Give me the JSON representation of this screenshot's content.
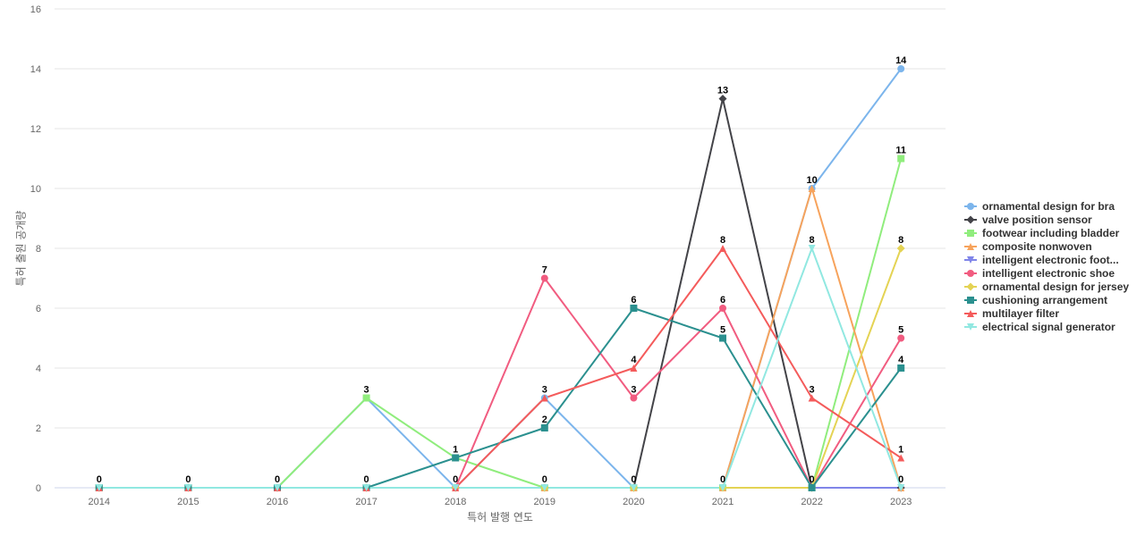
{
  "chart_data": {
    "type": "line",
    "title": "",
    "xlabel": "특허 발행 연도",
    "ylabel": "특허 출원 공개량",
    "x": [
      "2014",
      "2015",
      "2016",
      "2017",
      "2018",
      "2019",
      "2020",
      "2021",
      "2022",
      "2023"
    ],
    "ylim": [
      0,
      16
    ],
    "yticks": [
      0,
      2,
      4,
      6,
      8,
      10,
      12,
      14,
      16
    ],
    "grid": true,
    "legend_position": "right",
    "series": [
      {
        "name": "ornamental design for bra",
        "color": "#7cb5ec",
        "marker": "circle",
        "values": [
          0,
          0,
          0,
          3,
          0,
          3,
          0,
          0,
          10,
          14
        ]
      },
      {
        "name": "valve position sensor",
        "color": "#434348",
        "marker": "diamond",
        "values": [
          0,
          0,
          0,
          0,
          0,
          0,
          0,
          13,
          0,
          0
        ]
      },
      {
        "name": "footwear including bladder",
        "color": "#90ed7d",
        "marker": "square",
        "values": [
          0,
          0,
          0,
          3,
          1,
          0,
          0,
          0,
          0,
          11
        ]
      },
      {
        "name": "composite nonwoven",
        "color": "#f7a35c",
        "marker": "triangle",
        "values": [
          0,
          0,
          0,
          0,
          0,
          0,
          0,
          0,
          10,
          0
        ]
      },
      {
        "name": "intelligent electronic foot...",
        "color": "#8085e9",
        "marker": "triangle-down",
        "values": [
          0,
          0,
          0,
          0,
          0,
          0,
          0,
          0,
          0,
          0
        ]
      },
      {
        "name": "intelligent electronic shoe",
        "color": "#f15c80",
        "marker": "circle",
        "values": [
          0,
          0,
          0,
          0,
          0,
          7,
          3,
          6,
          0,
          5
        ]
      },
      {
        "name": "ornamental design for jersey",
        "color": "#e4d354",
        "marker": "diamond",
        "values": [
          0,
          0,
          0,
          0,
          0,
          0,
          0,
          0,
          0,
          8
        ]
      },
      {
        "name": "cushioning arrangement",
        "color": "#2b908f",
        "marker": "square",
        "values": [
          0,
          0,
          0,
          0,
          1,
          2,
          6,
          5,
          0,
          4
        ]
      },
      {
        "name": "multilayer filter",
        "color": "#f45b5b",
        "marker": "triangle",
        "values": [
          0,
          0,
          0,
          0,
          0,
          3,
          4,
          8,
          3,
          1
        ]
      },
      {
        "name": "electrical signal generator",
        "color": "#91e8e1",
        "marker": "triangle-down",
        "values": [
          0,
          0,
          0,
          0,
          0,
          0,
          0,
          0,
          8,
          0
        ]
      }
    ],
    "data_labels": [
      {
        "x": "2014",
        "y": 0,
        "text": "0"
      },
      {
        "x": "2015",
        "y": 0,
        "text": "0"
      },
      {
        "x": "2016",
        "y": 0,
        "text": "0"
      },
      {
        "x": "2017",
        "y": 3,
        "text": "3"
      },
      {
        "x": "2017",
        "y": 0,
        "text": "0"
      },
      {
        "x": "2018",
        "y": 1,
        "text": "1"
      },
      {
        "x": "2018",
        "y": 0,
        "text": "0"
      },
      {
        "x": "2019",
        "y": 7,
        "text": "7"
      },
      {
        "x": "2019",
        "y": 3,
        "text": "3"
      },
      {
        "x": "2019",
        "y": 2,
        "text": "2"
      },
      {
        "x": "2019",
        "y": 0,
        "text": "0"
      },
      {
        "x": "2020",
        "y": 6,
        "text": "6"
      },
      {
        "x": "2020",
        "y": 4,
        "text": "4"
      },
      {
        "x": "2020",
        "y": 3,
        "text": "3"
      },
      {
        "x": "2020",
        "y": 0,
        "text": "0"
      },
      {
        "x": "2021",
        "y": 13,
        "text": "13"
      },
      {
        "x": "2021",
        "y": 8,
        "text": "8"
      },
      {
        "x": "2021",
        "y": 6,
        "text": "6"
      },
      {
        "x": "2021",
        "y": 5,
        "text": "5"
      },
      {
        "x": "2021",
        "y": 0,
        "text": "0"
      },
      {
        "x": "2022",
        "y": 10,
        "text": "10"
      },
      {
        "x": "2022",
        "y": 8,
        "text": "8"
      },
      {
        "x": "2022",
        "y": 3,
        "text": "3"
      },
      {
        "x": "2022",
        "y": 0,
        "text": "0"
      },
      {
        "x": "2023",
        "y": 14,
        "text": "14"
      },
      {
        "x": "2023",
        "y": 11,
        "text": "11"
      },
      {
        "x": "2023",
        "y": 8,
        "text": "8"
      },
      {
        "x": "2023",
        "y": 5,
        "text": "5"
      },
      {
        "x": "2023",
        "y": 4,
        "text": "4"
      },
      {
        "x": "2023",
        "y": 1,
        "text": "1"
      },
      {
        "x": "2023",
        "y": 0,
        "text": "0"
      }
    ]
  }
}
